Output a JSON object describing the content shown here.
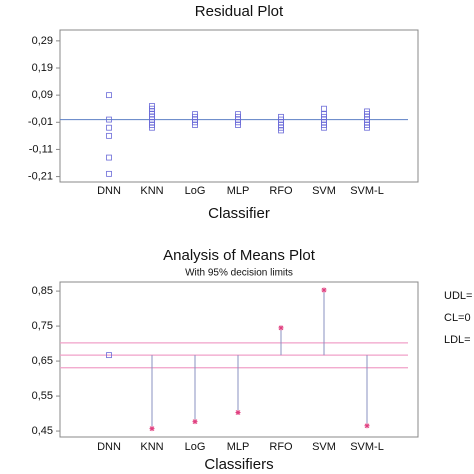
{
  "chart_data": [
    {
      "type": "scatter",
      "title": "Residual Plot",
      "xlabel": "Classifier",
      "categories": [
        "DNN",
        "KNN",
        "LoG",
        "MLP",
        "RFO",
        "SVM",
        "SVM-L"
      ],
      "values": [
        [
          0.09,
          0.0,
          -0.03,
          -0.06,
          -0.14,
          -0.2
        ],
        [
          0.05,
          0.04,
          0.03,
          0.02,
          0.01,
          0.0,
          -0.01,
          -0.02,
          -0.03
        ],
        [
          0.02,
          0.01,
          0.0,
          -0.01,
          -0.02
        ],
        [
          0.02,
          0.01,
          0.0,
          -0.01,
          -0.02
        ],
        [
          0.01,
          0.0,
          -0.01,
          -0.02,
          -0.03,
          -0.04
        ],
        [
          0.04,
          0.02,
          0.01,
          0.0,
          -0.01,
          -0.02,
          -0.03
        ],
        [
          0.03,
          0.02,
          0.01,
          0.0,
          -0.01,
          -0.02,
          -0.03
        ]
      ],
      "color": "#6a6ad8",
      "hline": 0.0,
      "hline_color": "#5b7fc4",
      "ylim": [
        -0.23,
        0.33
      ],
      "yticks": [
        {
          "value": 0.29,
          "label": "0,29"
        },
        {
          "value": 0.19,
          "label": "0,19"
        },
        {
          "value": 0.09,
          "label": "0,09"
        },
        {
          "value": -0.01,
          "label": "-0,01"
        },
        {
          "value": -0.11,
          "label": "-0,11"
        },
        {
          "value": -0.21,
          "label": "-0,21"
        }
      ]
    },
    {
      "type": "anom",
      "title": "Analysis of Means Plot",
      "subtitle": "With 95% decision limits",
      "xlabel": "Classifiers",
      "categories": [
        "DNN",
        "KNN",
        "LoG",
        "MLP",
        "RFO",
        "SVM",
        "SVM-L"
      ],
      "values": [
        0.667,
        0.457,
        0.477,
        0.503,
        0.745,
        0.853,
        0.465
      ],
      "limits": {
        "udl": 0.702,
        "cl": 0.667,
        "ldl": 0.631
      },
      "limit_labels": [
        "UDL=",
        "CL=0",
        "LDL="
      ],
      "color": "#e04080",
      "limit_color": "#f0a0c8",
      "stem_color": "#8a90c0",
      "ylim": [
        0.433,
        0.876
      ],
      "yticks": [
        {
          "value": 0.85,
          "label": "0,85"
        },
        {
          "value": 0.75,
          "label": "0,75"
        },
        {
          "value": 0.65,
          "label": "0,65"
        },
        {
          "value": 0.55,
          "label": "0,55"
        },
        {
          "value": 0.45,
          "label": "0,45"
        }
      ]
    }
  ]
}
